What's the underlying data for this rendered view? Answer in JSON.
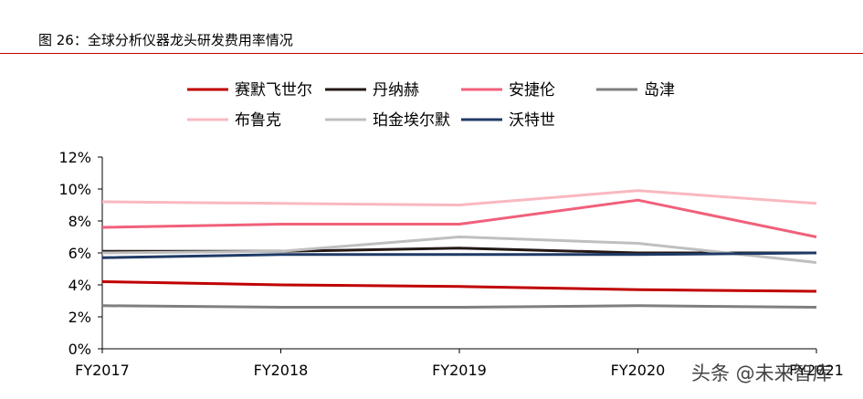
{
  "figure": {
    "title": "图 26：全球分析仪器龙头研发费用率情况",
    "rule_color": "#c00000"
  },
  "watermark": "头条 @未来智库",
  "chart_data": {
    "type": "line",
    "title": "",
    "xlabel": "",
    "ylabel": "",
    "categories": [
      "FY2017",
      "FY2018",
      "FY2019",
      "FY2020",
      "FY2021"
    ],
    "ylim": [
      0,
      12
    ],
    "yticks": [
      0,
      2,
      4,
      6,
      8,
      10,
      12
    ],
    "ytick_labels": [
      "0%",
      "2%",
      "4%",
      "6%",
      "8%",
      "10%",
      "12%"
    ],
    "grid": false,
    "legend_position": "top",
    "series": [
      {
        "name": "赛默飞世尔",
        "color": "#c00000",
        "values": [
          4.2,
          4.0,
          3.9,
          3.7,
          3.6
        ]
      },
      {
        "name": "丹纳赫",
        "color": "#231815",
        "values": [
          6.1,
          6.1,
          6.3,
          6.0,
          6.0
        ]
      },
      {
        "name": "安捷伦",
        "color": "#f0607a",
        "values": [
          7.6,
          7.8,
          7.8,
          9.3,
          7.0
        ]
      },
      {
        "name": "岛津",
        "color": "#7f7f7f",
        "values": [
          2.7,
          2.6,
          2.6,
          2.7,
          2.6
        ]
      },
      {
        "name": "布鲁克",
        "color": "#f9b8c0",
        "values": [
          9.2,
          9.1,
          9.0,
          9.9,
          9.1
        ]
      },
      {
        "name": "珀金埃尔默",
        "color": "#bfbfbf",
        "values": [
          6.0,
          6.1,
          7.0,
          6.6,
          5.4
        ]
      },
      {
        "name": "沃特世",
        "color": "#1f3a66",
        "values": [
          5.7,
          5.9,
          5.9,
          5.9,
          6.0
        ]
      }
    ]
  }
}
